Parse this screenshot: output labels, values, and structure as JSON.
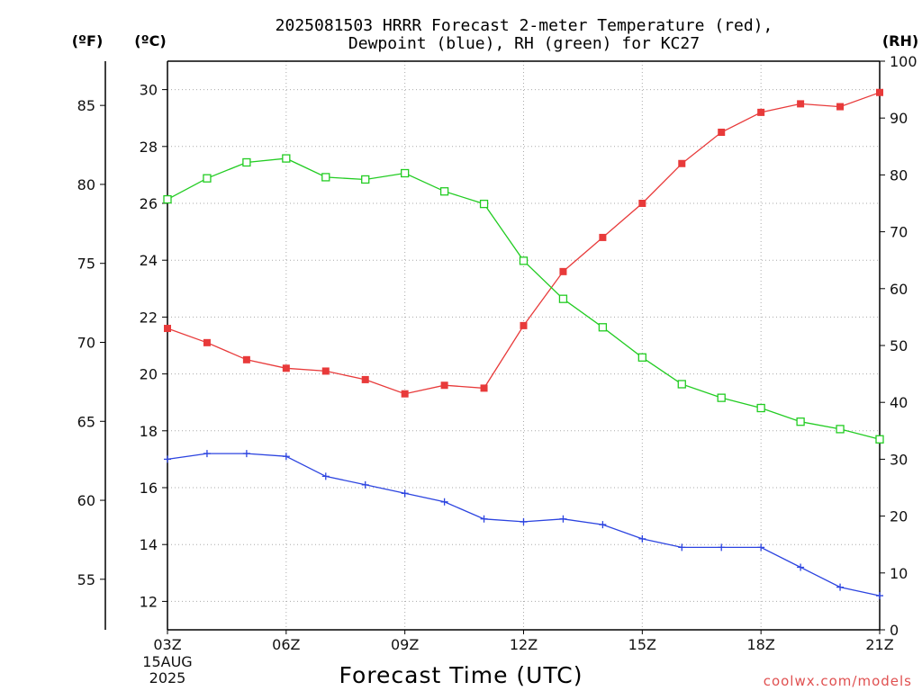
{
  "chart_data": {
    "type": "line",
    "title_line1": "2025081503 HRRR Forecast 2-meter Temperature (red),",
    "title_line2": "Dewpoint (blue), RH (green) for KC27",
    "xlabel": "Forecast Time (UTC)",
    "credit": "coolwx.com/models",
    "unit_labels": {
      "fahrenheit": "(ºF)",
      "celsius": "(ºC)",
      "rh": "(RH)"
    },
    "x_hours": [
      3,
      4,
      5,
      6,
      7,
      8,
      9,
      10,
      11,
      12,
      13,
      14,
      15,
      16,
      17,
      18,
      19,
      20,
      21
    ],
    "x_tick_hours": [
      3,
      6,
      9,
      12,
      15,
      18,
      21
    ],
    "x_tick_labels": [
      "03Z",
      "06Z",
      "09Z",
      "12Z",
      "15Z",
      "18Z",
      "21Z"
    ],
    "x_date_line1": "15AUG",
    "x_date_line2": "2025",
    "xlim": [
      3,
      21
    ],
    "ylim_celsius": [
      11,
      31
    ],
    "yticks_celsius": [
      "12",
      "14",
      "16",
      "18",
      "20",
      "22",
      "24",
      "26",
      "28",
      "30"
    ],
    "yticks_fahrenheit": [
      "55",
      "60",
      "65",
      "70",
      "75",
      "80",
      "85"
    ],
    "ylim_rh": [
      0,
      100
    ],
    "yticks_rh": [
      "0",
      "10",
      "20",
      "30",
      "40",
      "50",
      "60",
      "70",
      "80",
      "90",
      "100"
    ],
    "grid": true,
    "series": [
      {
        "name": "Temperature",
        "axis": "celsius",
        "color": "#e83a3a",
        "marker": "filled-square",
        "values": [
          21.6,
          21.1,
          20.5,
          20.2,
          20.1,
          19.8,
          19.3,
          19.6,
          19.5,
          21.7,
          23.6,
          24.8,
          26.0,
          27.4,
          28.5,
          29.2,
          29.5,
          29.4,
          29.9
        ]
      },
      {
        "name": "Dewpoint",
        "axis": "celsius",
        "color": "#2c44e0",
        "marker": "plus",
        "values": [
          17.0,
          17.2,
          17.2,
          17.1,
          16.4,
          16.1,
          15.8,
          15.5,
          14.9,
          14.8,
          14.9,
          14.7,
          14.2,
          13.9,
          13.9,
          13.9,
          13.2,
          12.5,
          12.2
        ]
      },
      {
        "name": "RH",
        "axis": "rh",
        "color": "#22cc22",
        "marker": "open-square",
        "values": [
          75.7,
          79.4,
          82.2,
          82.9,
          79.6,
          79.2,
          80.3,
          77.1,
          74.9,
          64.9,
          58.2,
          53.2,
          47.9,
          43.2,
          40.8,
          39.0,
          36.6,
          35.3,
          33.5
        ]
      }
    ]
  }
}
